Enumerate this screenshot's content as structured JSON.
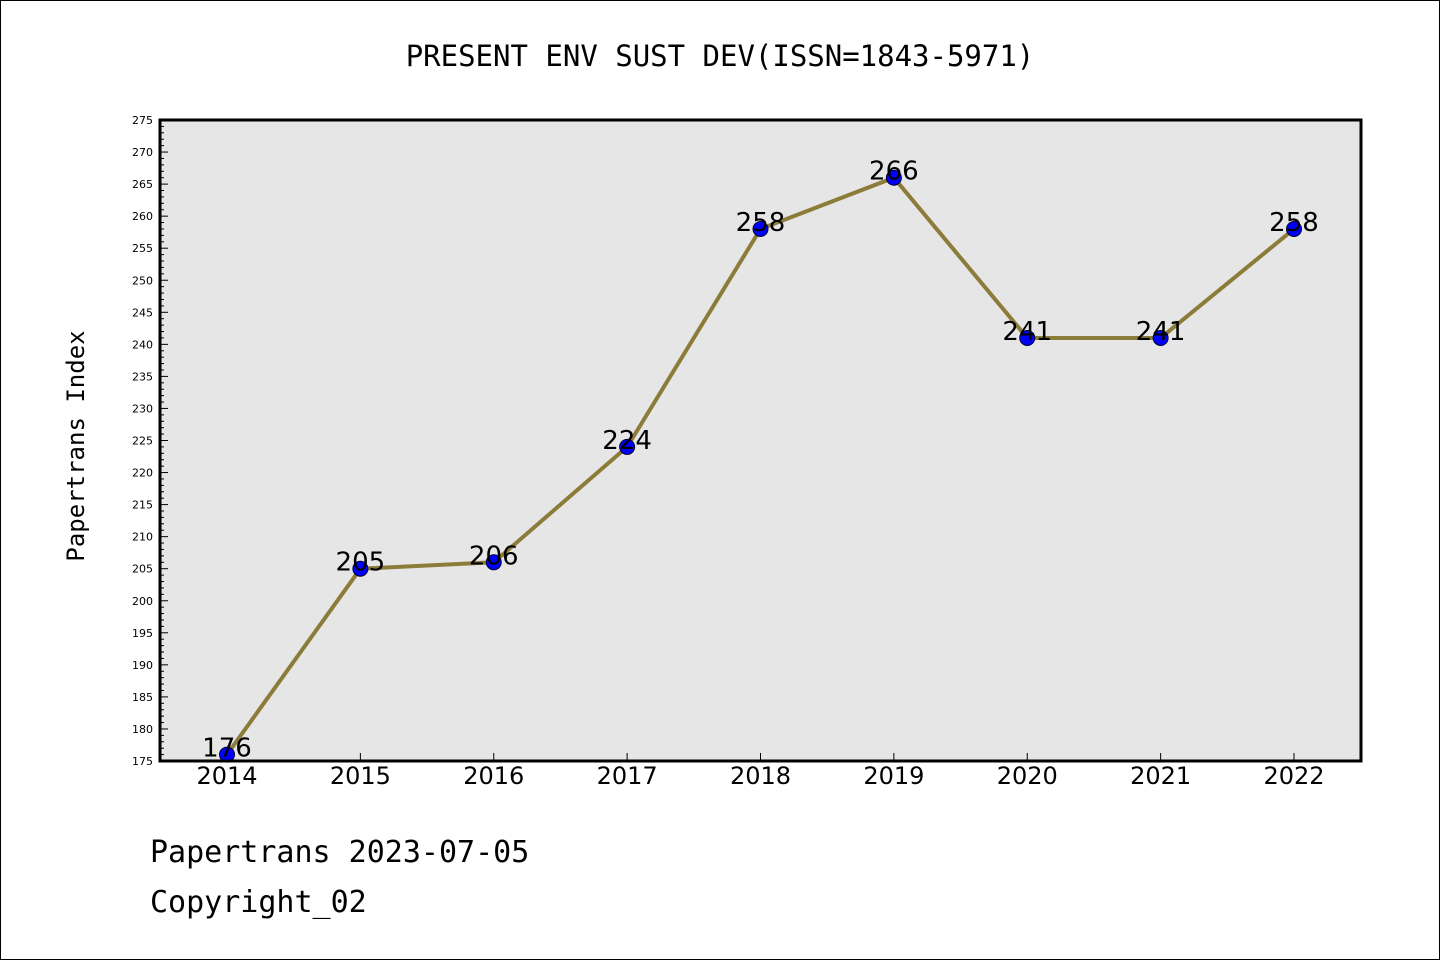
{
  "chart_data": {
    "type": "line",
    "title": "PRESENT ENV SUST DEV(ISSN=1843-5971)",
    "xlabel": "",
    "ylabel": "Papertrans Index",
    "categories": [
      "2014",
      "2015",
      "2016",
      "2017",
      "2018",
      "2019",
      "2020",
      "2021",
      "2022"
    ],
    "series": [
      {
        "values": [
          176,
          205,
          206,
          224,
          258,
          266,
          241,
          241,
          258
        ]
      }
    ],
    "data_labels": [
      "176",
      "205",
      "206",
      "224",
      "258",
      "266",
      "241",
      "241",
      "258"
    ],
    "ylim": [
      175,
      275
    ],
    "y_ticks": [
      "175",
      "180",
      "185",
      "190",
      "195",
      "200",
      "205",
      "210",
      "215",
      "220",
      "225",
      "230",
      "235",
      "240",
      "245",
      "250",
      "255",
      "260",
      "265",
      "270",
      "275"
    ],
    "y_minor_step": 1,
    "grid": false,
    "colors": {
      "line": "#8c7c3a",
      "marker": "#0000ff",
      "plot_background": "#e6e6e6"
    }
  },
  "footer": {
    "line1": "Papertrans 2023-07-05",
    "line2": "Copyright_02"
  }
}
